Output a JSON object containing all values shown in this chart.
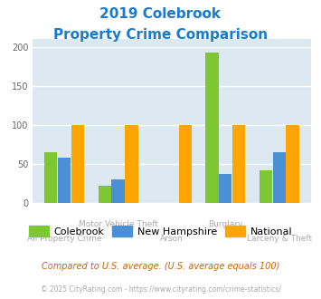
{
  "title_line1": "2019 Colebrook",
  "title_line2": "Property Crime Comparison",
  "categories": [
    "All Property Crime",
    "Motor Vehicle Theft",
    "Arson",
    "Burglary",
    "Larceny & Theft"
  ],
  "colebrook": [
    65,
    23,
    0,
    193,
    42
  ],
  "new_hampshire": [
    58,
    31,
    0,
    38,
    65
  ],
  "national": [
    100,
    100,
    100,
    100,
    100
  ],
  "colebrook_color": "#7dc832",
  "new_hampshire_color": "#4b8fd4",
  "national_color": "#ffa500",
  "bg_color": "#dce9f0",
  "title_color": "#1a7acc",
  "ylabel_ticks": [
    0,
    50,
    100,
    150,
    200
  ],
  "footnote": "Compared to U.S. average. (U.S. average equals 100)",
  "copyright": "© 2025 CityRating.com - https://www.cityrating.com/crime-statistics/",
  "legend_labels": [
    "Colebrook",
    "New Hampshire",
    "National"
  ]
}
